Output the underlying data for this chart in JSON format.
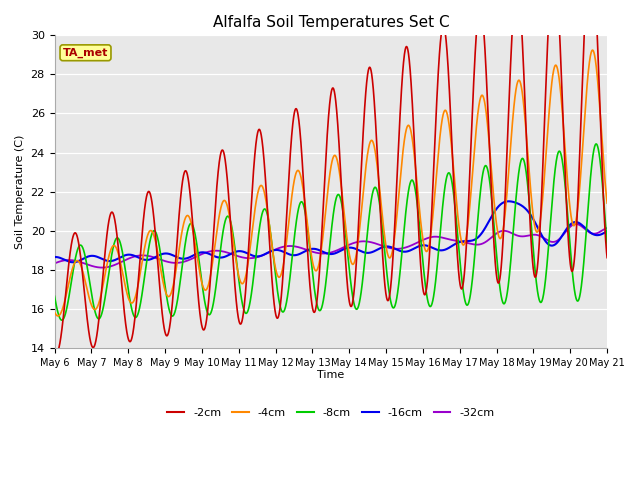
{
  "title": "Alfalfa Soil Temperatures Set C",
  "xlabel": "Time",
  "ylabel": "Soil Temperature (C)",
  "ylim": [
    14,
    30
  ],
  "series_colors": {
    "-2cm": "#cc0000",
    "-4cm": "#ff8800",
    "-8cm": "#00cc00",
    "-16cm": "#0000ee",
    "-32cm": "#9900cc"
  },
  "x_tick_labels": [
    "May 6",
    "May 7",
    "May 8",
    "May 9",
    "May 10",
    "May 11",
    "May 12",
    "May 13",
    "May 14",
    "May 15",
    "May 16",
    "May 17",
    "May 18",
    "May 19",
    "May 20",
    "May 21"
  ],
  "annotation_text": "TA_met",
  "annotation_bg": "#ffff99",
  "annotation_border": "#999900"
}
